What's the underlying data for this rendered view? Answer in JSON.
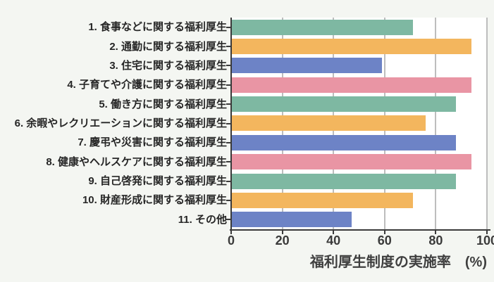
{
  "figure": {
    "background": "#f4f6f2",
    "plot_background": "#ffffff",
    "gridline_color": "#bdbdbd",
    "spine_color": "#3b3b3b",
    "label_color": "#262626",
    "tick_label_color": "#3a3a3a"
  },
  "chart_data": {
    "type": "bar",
    "orientation": "horizontal",
    "title": "",
    "categories": [
      "1. 食事などに関する福利厚生",
      "2. 通勤に関する福利厚生",
      "3. 住宅に関する福利厚生",
      "4. 子育てや介護に関する福利厚生",
      "5. 働き方に関する福利厚生",
      "6. 余暇やレクリエーションに関する福利厚生",
      "7. 慶弔や災害に関する福利厚生",
      "8. 健康やヘルスケアに関する福利厚生",
      "9. 自己啓発に関する福利厚生",
      "10. 財産形成に関する福利厚生",
      "11. その他"
    ],
    "values": [
      71,
      94,
      59,
      94,
      88,
      76,
      88,
      94,
      88,
      71,
      47
    ],
    "bar_colors": [
      "#7eb8a2",
      "#f3b65e",
      "#6d83c6",
      "#e995a4",
      "#7eb8a2",
      "#f3b65e",
      "#6d83c6",
      "#e995a4",
      "#7eb8a2",
      "#f3b65e",
      "#6d83c6"
    ],
    "palette": [
      "#7eb8a2",
      "#f3b65e",
      "#6d83c6",
      "#e995a4"
    ],
    "xlabel": "福利厚生制度の実施率　(%)",
    "ylabel": "",
    "xlim": [
      0,
      100
    ],
    "xticks": [
      0,
      20,
      40,
      60,
      80,
      100
    ],
    "grid": "vertical",
    "legend": "none"
  }
}
